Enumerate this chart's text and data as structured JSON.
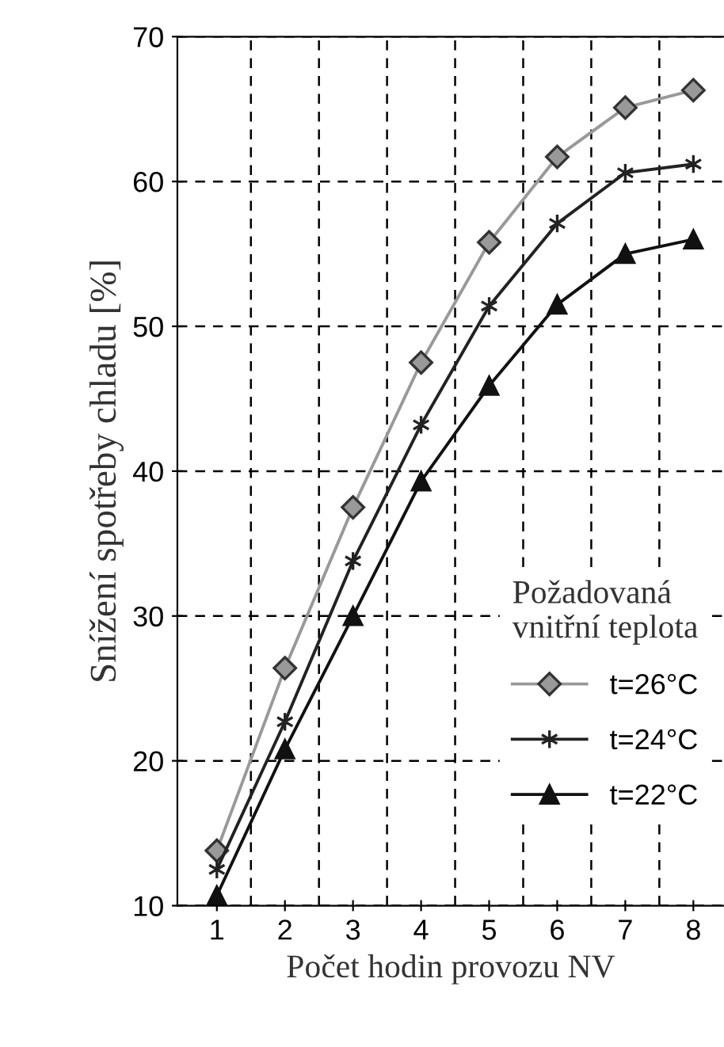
{
  "chart_data": {
    "type": "line",
    "xlabel": "Počet hodin provozu NV",
    "ylabel": "Snížení spotřeby chladu [%]",
    "legend_title": "Požadovaná\nvnitřní teplota",
    "categories": [
      "1",
      "2",
      "3",
      "4",
      "5",
      "6",
      "7",
      "8"
    ],
    "ylim": [
      10,
      70
    ],
    "yticks": [
      10,
      20,
      30,
      40,
      50,
      60,
      70
    ],
    "grid": true,
    "legend": "bottom right",
    "line_style": "solid",
    "series": [
      {
        "name": "t=26°C",
        "color": "#999999",
        "marker": "diamond",
        "values": [
          13.8,
          26.4,
          37.5,
          47.5,
          55.8,
          61.7,
          65.1,
          66.3
        ]
      },
      {
        "name": "t=24°C",
        "color": "#222222",
        "marker": "cross",
        "values": [
          12.5,
          22.7,
          33.8,
          43.2,
          51.4,
          57.1,
          60.6,
          61.2
        ]
      },
      {
        "name": "t=22°C",
        "color": "#111111",
        "marker": "triangle",
        "values": [
          10.7,
          20.8,
          30.0,
          39.3,
          45.9,
          51.5,
          55.0,
          56.0
        ]
      }
    ]
  }
}
